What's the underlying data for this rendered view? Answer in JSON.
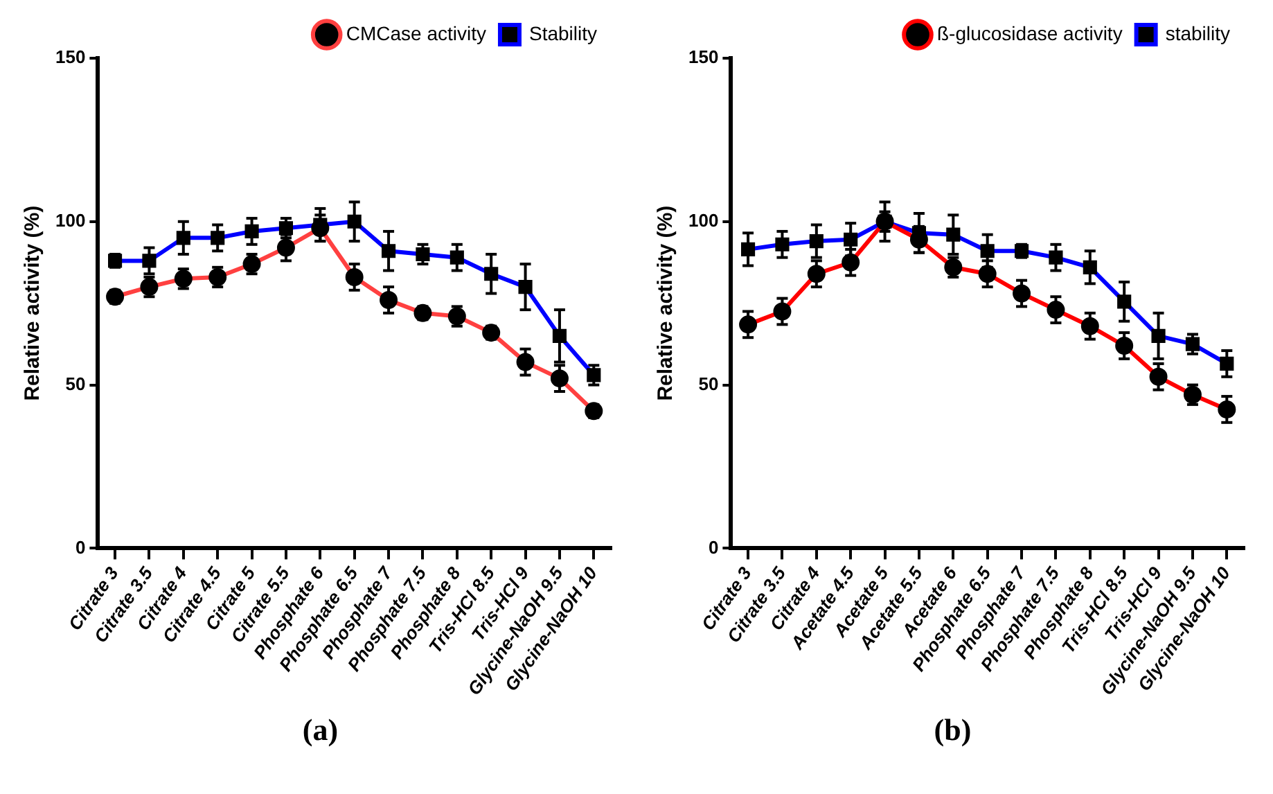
{
  "chart_data": [
    {
      "type": "line",
      "annotations": [
        "(a)"
      ],
      "ylabel": "Relative activity (%)",
      "categories": [
        "Citrate 3",
        "Citrate 3.5",
        "Citrate 4",
        "Citrate 4.5",
        "Citrate 5",
        "Citrate 5.5",
        "Phosphate 6",
        "Phosphate 6.5",
        "Phosphate 7",
        "Phosphate 7.5",
        "Phosphate 8",
        "Tris-HCl 8.5",
        "Tris-HCl 9",
        "Glycine-NaOH 9.5",
        "Glycine-NaOH 10"
      ],
      "ylim": [
        0,
        150
      ],
      "yticks": [
        0,
        50,
        100,
        150
      ],
      "grid": false,
      "legend": "top right",
      "series": [
        {
          "name": "CMCase activity",
          "color": "#ff4040",
          "marker": "circle",
          "values": [
            77,
            80,
            82.5,
            83,
            87,
            92,
            98,
            83,
            76,
            72,
            71,
            66,
            57,
            52,
            42
          ],
          "errors": [
            2,
            3,
            3,
            3,
            3,
            4,
            4,
            4,
            4,
            2,
            3,
            2,
            4,
            4,
            2
          ]
        },
        {
          "name": "Stability",
          "color": "#0000ff",
          "marker": "square",
          "values": [
            88,
            88,
            95,
            95,
            97,
            98,
            99,
            100,
            91,
            90,
            89,
            84,
            80,
            65,
            53
          ],
          "errors": [
            2,
            4,
            5,
            4,
            4,
            3,
            5,
            6,
            6,
            3,
            4,
            6,
            7,
            8,
            3
          ]
        }
      ]
    },
    {
      "type": "line",
      "annotations": [
        "(b)"
      ],
      "ylabel": "Relative activity (%)",
      "categories": [
        "Citrate 3",
        "Citrate 3.5",
        "Citrate 4",
        "Acetate 4.5",
        "Acetate 5",
        "Acetate 5.5",
        "Acetate 6",
        "Phosphate 6.5",
        "Phosphate 7",
        "Phosphate 7.5",
        "Phosphate 8",
        "Tris-HCl 8.5",
        "Tris-HCl 9",
        "Glycine-NaOH 9.5",
        "Glycine-NaOH 10"
      ],
      "ylim": [
        0,
        150
      ],
      "yticks": [
        0,
        50,
        100,
        150
      ],
      "grid": false,
      "legend": "top right",
      "series": [
        {
          "name": "ß-glucosidase activity",
          "color": "#ff0000",
          "marker": "circle",
          "values": [
            68.5,
            72.5,
            84,
            87.5,
            100,
            94.5,
            86,
            84,
            78,
            73,
            68,
            62,
            52.5,
            47,
            42.5
          ],
          "errors": [
            4,
            4,
            4,
            4,
            3,
            4,
            3,
            4,
            4,
            4,
            4,
            4,
            4,
            3,
            4
          ]
        },
        {
          "name": "stability",
          "color": "#0000ff",
          "marker": "square",
          "values": [
            91.5,
            93,
            94,
            94.5,
            100,
            96.5,
            96,
            91,
            91,
            89,
            86,
            75.5,
            65,
            62.5,
            56.5
          ],
          "errors": [
            5,
            4,
            5,
            5,
            6,
            6,
            6,
            5,
            2,
            4,
            5,
            6,
            7,
            3,
            4
          ]
        }
      ]
    }
  ]
}
